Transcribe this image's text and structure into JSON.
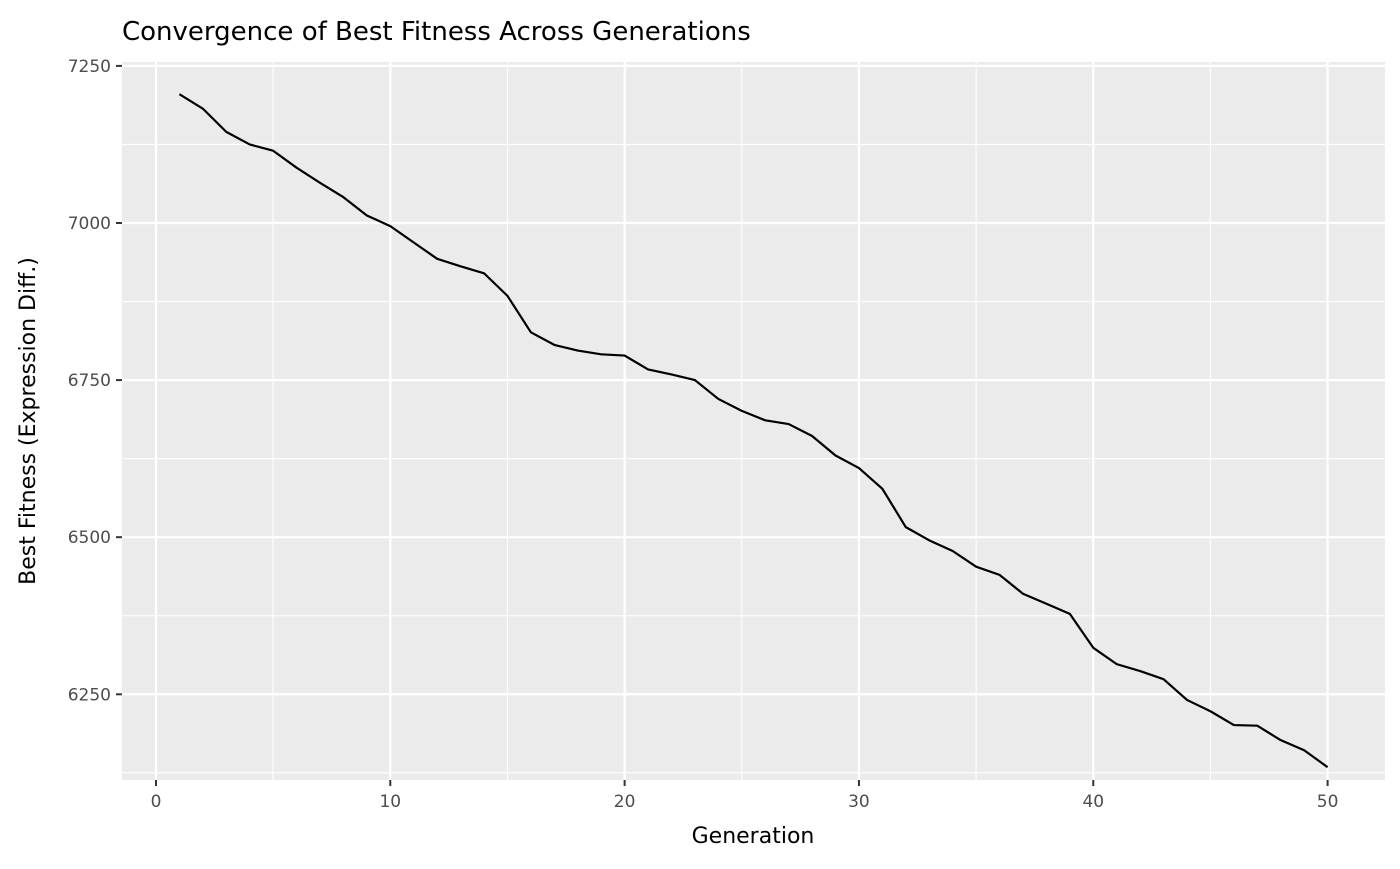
{
  "chart_data": {
    "type": "line",
    "title": "Convergence of Best Fitness Across Generations",
    "xlabel": "Generation",
    "ylabel": "Best Fitness (Expression Diff.)",
    "xlim": [
      -1.45,
      52.45
    ],
    "ylim": [
      6113.6,
      7256.2
    ],
    "x_ticks": [
      0,
      10,
      20,
      30,
      40,
      50
    ],
    "x_tick_labels": [
      "0",
      "10",
      "20",
      "30",
      "40",
      "50"
    ],
    "y_ticks": [
      6250,
      6500,
      6750,
      7000,
      7250
    ],
    "y_tick_labels": [
      "6250",
      "6500",
      "6750",
      "7000",
      "7250"
    ],
    "grid": true,
    "legend": "none",
    "colors": {
      "panel": "#ebebeb",
      "grid": "#ffffff",
      "line": "#000000"
    },
    "series": [
      {
        "x": [
          1,
          2,
          3,
          4,
          5,
          6,
          7,
          8,
          9,
          10,
          11,
          12,
          13,
          14,
          15,
          16,
          17,
          18,
          19,
          20,
          21,
          22,
          23,
          24,
          25,
          26,
          27,
          28,
          29,
          30,
          31,
          32,
          33,
          34,
          35,
          36,
          37,
          38,
          39,
          40,
          41,
          42,
          43,
          44,
          45,
          46,
          47,
          48,
          49,
          50
        ],
        "values": [
          7205,
          7182,
          7145,
          7125,
          7115,
          7088,
          7064,
          7041,
          7012,
          6995,
          6969,
          6943,
          6931,
          6920,
          6884,
          6826,
          6806,
          6797,
          6791,
          6789,
          6767,
          6759,
          6750,
          6720,
          6701,
          6686,
          6680,
          6661,
          6630,
          6610,
          6577,
          6516,
          6495,
          6478,
          6453,
          6440,
          6410,
          6394,
          6378,
          6324,
          6298,
          6287,
          6274,
          6241,
          6223,
          6201,
          6200,
          6177,
          6161,
          6134
        ]
      }
    ]
  }
}
